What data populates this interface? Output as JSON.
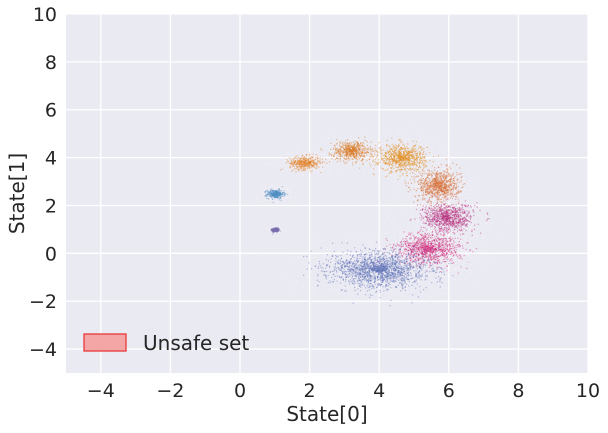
{
  "chart_data": {
    "type": "scatter",
    "title": "",
    "xlabel": "State[0]",
    "ylabel": "State[1]",
    "xlim": [
      -5,
      10
    ],
    "ylim": [
      -5,
      10
    ],
    "xticks": [
      -4,
      -2,
      0,
      2,
      4,
      6,
      8,
      10
    ],
    "yticks": [
      -4,
      -2,
      0,
      2,
      4,
      6,
      8,
      10
    ],
    "grid": true,
    "background": "#eaeaf2",
    "gridColor": "#ffffff",
    "legend": {
      "placement": "lower-left",
      "entries": [
        {
          "label": "Unsafe set",
          "fill": "#f4a6a6",
          "edge": "#e8393b"
        }
      ]
    },
    "series": [
      {
        "center": [
          1.0,
          1.0
        ],
        "spread": [
          0.05,
          0.04
        ],
        "color": "#7b6fb0"
      },
      {
        "center": [
          1.0,
          2.5
        ],
        "spread": [
          0.12,
          0.09
        ],
        "color": "#4f8fc4"
      },
      {
        "center": [
          1.85,
          3.8
        ],
        "spread": [
          0.22,
          0.14
        ],
        "color": "#e3822a"
      },
      {
        "center": [
          3.2,
          4.3
        ],
        "spread": [
          0.28,
          0.2
        ],
        "color": "#d9781f"
      },
      {
        "center": [
          4.65,
          4.0
        ],
        "spread": [
          0.34,
          0.28
        ],
        "color": "#e08a16"
      },
      {
        "center": [
          5.7,
          2.85
        ],
        "spread": [
          0.3,
          0.34
        ],
        "color": "#d6692b"
      },
      {
        "center": [
          5.95,
          1.5
        ],
        "spread": [
          0.36,
          0.3
        ],
        "color": "#b52a7a"
      },
      {
        "center": [
          5.4,
          0.2
        ],
        "spread": [
          0.45,
          0.32
        ],
        "color": "#d12c7b"
      },
      {
        "center": [
          4.0,
          -0.65
        ],
        "spread": [
          0.7,
          0.38
        ],
        "color": "#5b6fb5"
      }
    ]
  }
}
